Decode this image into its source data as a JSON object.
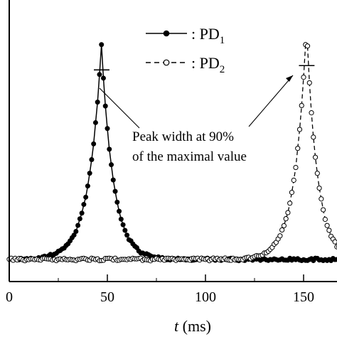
{
  "chart_data": {
    "type": "line",
    "xlabel_italic": "t",
    "xlabel_rest": " (ms)",
    "xlim": [
      0,
      175
    ],
    "ylim": [
      0,
      1.12
    ],
    "x_ticks": [
      0,
      50,
      100,
      150
    ],
    "x_tick_labels": [
      "0",
      "50",
      "100",
      "150"
    ],
    "y_tick_labels_shown": false,
    "grid": false,
    "legend_position": "top-right",
    "legend": [
      {
        "prefix": ": PD",
        "subscript": "1",
        "marker": "filled-circle",
        "line": "solid"
      },
      {
        "prefix": ": PD",
        "subscript": "2",
        "marker": "open-circle",
        "line": "dashed"
      }
    ],
    "annotation": {
      "line1": "Peak width at 90%",
      "line2": "of the maximal value"
    },
    "series": [
      {
        "name": "PD1",
        "color": "#000000",
        "marker": "filled-circle",
        "line": "solid",
        "baseline": 0.02,
        "peak_center": 47,
        "peak_height": 1.0,
        "rise_tau": 6.5,
        "fall_tau": 6.0,
        "x_start": 5,
        "x_end": 175,
        "x_step": 1,
        "peak_width_90": {
          "x_left": 45.3,
          "x_right": 48.9,
          "y": 0.9
        }
      },
      {
        "name": "PD2",
        "color": "#000000",
        "marker": "open-circle",
        "line": "dashed",
        "baseline": 0.02,
        "peak_center": 151.5,
        "peak_height": 1.08,
        "rise_tau": 6.0,
        "fall_tau": 5.5,
        "x_start": 0,
        "x_end": 175,
        "x_step": 1,
        "peak_width_90": {
          "x_left": 149.8,
          "x_right": 153.4,
          "y": 0.92
        }
      }
    ]
  }
}
